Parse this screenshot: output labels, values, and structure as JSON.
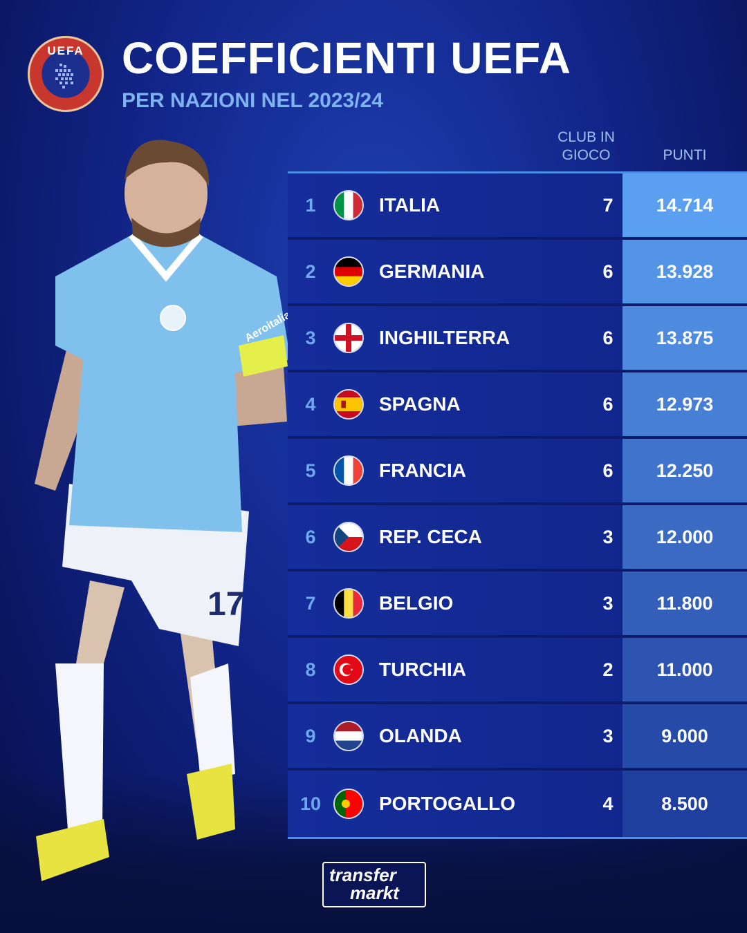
{
  "header": {
    "logo_text": "UEFA",
    "title": "COEFFICIENTI UEFA",
    "subtitle": "PER NAZIONI NEL 2023/24"
  },
  "columns": {
    "clubs": "CLUB IN GIOCO",
    "points": "PUNTI"
  },
  "rows": [
    {
      "rank": "1",
      "country": "ITALIA",
      "flag": "italy-flag-icon",
      "clubs": "7",
      "points": "14.714"
    },
    {
      "rank": "2",
      "country": "GERMANIA",
      "flag": "germany-flag-icon",
      "clubs": "6",
      "points": "13.928"
    },
    {
      "rank": "3",
      "country": "INGHILTERRA",
      "flag": "england-flag-icon",
      "clubs": "6",
      "points": "13.875"
    },
    {
      "rank": "4",
      "country": "SPAGNA",
      "flag": "spain-flag-icon",
      "clubs": "6",
      "points": "12.973"
    },
    {
      "rank": "5",
      "country": "FRANCIA",
      "flag": "france-flag-icon",
      "clubs": "6",
      "points": "12.250"
    },
    {
      "rank": "6",
      "country": "REP. CECA",
      "flag": "czech-flag-icon",
      "clubs": "3",
      "points": "12.000"
    },
    {
      "rank": "7",
      "country": "BELGIO",
      "flag": "belgium-flag-icon",
      "clubs": "3",
      "points": "11.800"
    },
    {
      "rank": "8",
      "country": "TURCHIA",
      "flag": "turkey-flag-icon",
      "clubs": "2",
      "points": "11.000"
    },
    {
      "rank": "9",
      "country": "OLANDA",
      "flag": "netherlands-flag-icon",
      "clubs": "3",
      "points": "9.000"
    },
    {
      "rank": "10",
      "country": "PORTOGALLO",
      "flag": "portugal-flag-icon",
      "clubs": "4",
      "points": "8.500"
    }
  ],
  "player": {
    "shirt_number": "17",
    "sponsor": "Aeroitalia"
  },
  "brand": {
    "line1": "transfer",
    "line2": "markt"
  },
  "colors": {
    "points_top": "#5b9ff0",
    "points_bottom": "#1f3f9e",
    "accent": "#7fb2f0"
  }
}
